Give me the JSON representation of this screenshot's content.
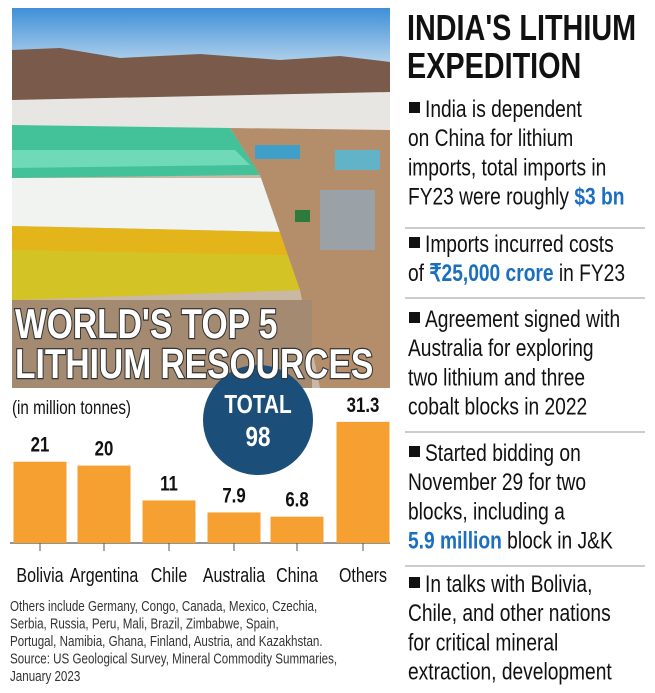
{
  "chart_data": {
    "type": "bar",
    "title": [
      "WORLD'S TOP 5",
      "LITHIUM RESOURCES"
    ],
    "subtitle": "(in million tonnes)",
    "total_label": "TOTAL",
    "total_value": "98",
    "categories": [
      "Bolivia",
      "Argentina",
      "Chile",
      "Australia",
      "China",
      "Others"
    ],
    "values": [
      21,
      20,
      11,
      7.9,
      6.8,
      31.3
    ],
    "color": "#f5a030",
    "footnote": [
      "Others include  Germany, Congo, Canada, Mexico, Czechia,",
      "Serbia, Russia, Peru, Mali, Brazil, Zimbabwe, Spain,",
      "Portugal, Namibia, Ghana, Finland, Austria, and Kazakhstan.",
      "Source: US Geological Survey, Mineral Commodity Summaries,",
      "January 2023"
    ]
  },
  "sidebar": {
    "title": [
      "INDIA'S LITHIUM",
      "EXPEDITION"
    ],
    "bullets": [
      [
        [
          {
            "text": "India is dependent"
          }
        ],
        [
          {
            "text": "on China for lithium"
          }
        ],
        [
          {
            "text": "imports, total imports in"
          }
        ],
        [
          {
            "text": "FY23 were roughly "
          },
          {
            "text": "$3 bn",
            "highlight": true
          }
        ]
      ],
      [
        [
          {
            "text": "Imports incurred costs"
          }
        ],
        [
          {
            "text": "of "
          },
          {
            "text": "₹25,000 crore",
            "highlight": true
          },
          {
            "text": " in FY23"
          }
        ]
      ],
      [
        [
          {
            "text": "Agreement signed with"
          }
        ],
        [
          {
            "text": "Australia for exploring"
          }
        ],
        [
          {
            "text": "two lithium and three"
          }
        ],
        [
          {
            "text": "cobalt blocks in 2022"
          }
        ]
      ],
      [
        [
          {
            "text": "Started bidding on"
          }
        ],
        [
          {
            "text": "November 29 for two"
          }
        ],
        [
          {
            "text": "blocks, including a"
          }
        ],
        [
          {
            "text": "5.9 million",
            "highlight": true
          },
          {
            "text": " block in J&K"
          }
        ]
      ],
      [
        [
          {
            "text": "In talks with Bolivia,"
          }
        ],
        [
          {
            "text": "Chile, and other nations"
          }
        ],
        [
          {
            "text": "for critical mineral"
          }
        ],
        [
          {
            "text": "extraction, development"
          }
        ]
      ]
    ]
  }
}
